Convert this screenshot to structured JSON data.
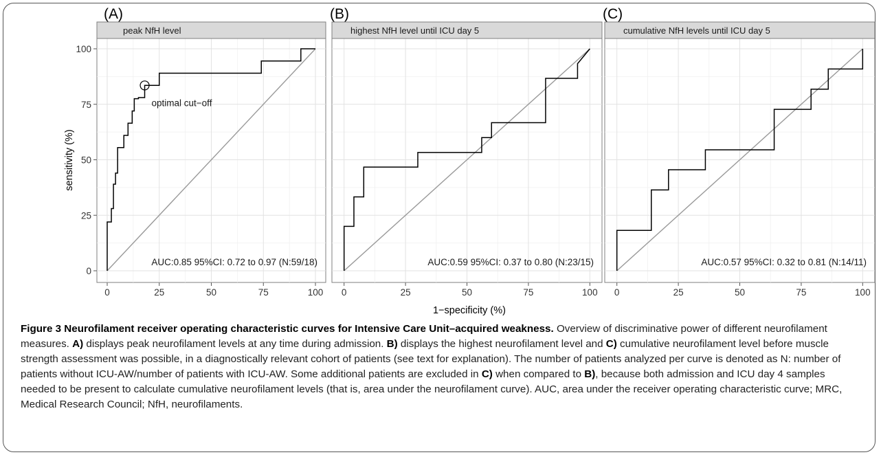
{
  "chart_data": {
    "type": "line",
    "ylabel": "sensitivity (%)",
    "xlabel": "1−specificity (%)",
    "xlim": [
      0,
      100
    ],
    "ylim": [
      0,
      100
    ],
    "xticks": [
      0,
      25,
      50,
      75,
      100
    ],
    "yticks": [
      0,
      25,
      50,
      75,
      100
    ],
    "grid": true,
    "panels": [
      {
        "tag": "(A)",
        "strip": "peak NfH level",
        "auc_text": "AUC:0.85 95%CI: 0.72 to 0.97 (N:59/18)",
        "annotation": "optimal cut−off",
        "marker_point": [
          18,
          83.5
        ],
        "series": {
          "x": [
            0,
            0,
            2,
            2,
            3,
            3,
            4,
            4,
            5,
            5,
            8,
            8,
            10,
            10,
            12,
            12,
            13,
            13,
            15,
            15,
            18,
            18,
            25,
            25,
            74,
            74,
            93,
            93,
            100
          ],
          "y": [
            0,
            22,
            22,
            28,
            28,
            39,
            39,
            44,
            44,
            55.5,
            55.5,
            61,
            61,
            66.5,
            66.5,
            72,
            72,
            77.5,
            77.5,
            78,
            78,
            83.5,
            83.5,
            89,
            89,
            94.5,
            94.5,
            100,
            100
          ]
        }
      },
      {
        "tag": "(B)",
        "strip": "highest NfH level until ICU day 5",
        "auc_text": "AUC:0.59 95%CI: 0.37 to 0.80 (N:23/15)",
        "series": {
          "x": [
            0,
            0,
            4,
            4,
            8,
            8,
            30,
            30,
            56,
            56,
            60,
            60,
            82,
            82,
            95,
            95,
            100
          ],
          "y": [
            0,
            20,
            20,
            33.3,
            33.3,
            46.7,
            46.7,
            53.3,
            53.3,
            60,
            60,
            66.7,
            66.7,
            86.7,
            86.7,
            93.3,
            100
          ]
        }
      },
      {
        "tag": "(C)",
        "strip": "cumulative NfH levels until ICU day 5",
        "auc_text": "AUC:0.57 95%CI: 0.32 to 0.81 (N:14/11)",
        "series": {
          "x": [
            0,
            0,
            14,
            14,
            21,
            21,
            36,
            36,
            64,
            64,
            79,
            79,
            86,
            86,
            100,
            100
          ],
          "y": [
            0,
            18.2,
            18.2,
            36.4,
            36.4,
            45.5,
            45.5,
            54.5,
            54.5,
            72.7,
            72.7,
            81.8,
            81.8,
            90.9,
            90.9,
            100
          ]
        }
      }
    ]
  },
  "caption": {
    "title": "Figure 3 Neurofilament receiver operating characteristic curves for Intensive Care Unit–acquired weakness.",
    "segments": [
      {
        "b": false,
        "t": " Overview of discriminative power of different neurofilament measures. "
      },
      {
        "b": true,
        "t": "A)"
      },
      {
        "b": false,
        "t": " displays peak neurofilament levels at any time during admission. "
      },
      {
        "b": true,
        "t": "B)"
      },
      {
        "b": false,
        "t": " displays the highest neurofilament level and "
      },
      {
        "b": true,
        "t": "C)"
      },
      {
        "b": false,
        "t": " cumulative neurofilament level before muscle strength assessment was possible, in a diagnostically relevant cohort of patients (see text for explanation). The number of patients analyzed per curve is denoted as N: number of patients without ICU-AW/number of patients with ICU-AW. Some additional patients are excluded in "
      },
      {
        "b": true,
        "t": "C)"
      },
      {
        "b": false,
        "t": " when compared to "
      },
      {
        "b": true,
        "t": "B)"
      },
      {
        "b": false,
        "t": ", because both admission and ICU day 4 samples needed to be present to calculate cumulative neurofilament levels (that is, area under the neurofilament curve). AUC, area under the receiver operating characteristic curve; MRC, Medical Research Council; NfH, neurofilaments."
      }
    ]
  }
}
